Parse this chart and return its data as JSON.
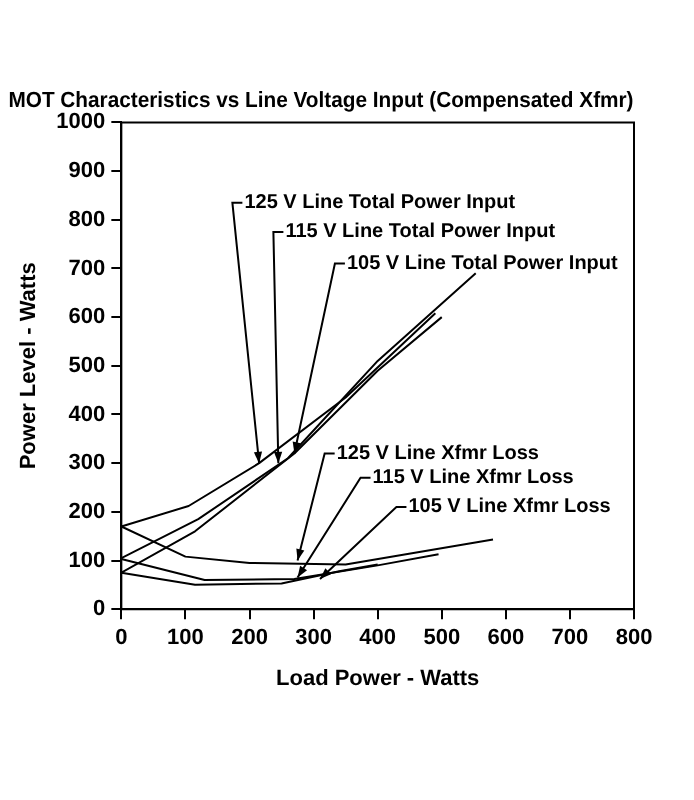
{
  "chart_data": {
    "type": "line",
    "title": "MOT Characteristics vs Line Voltage Input (Compensated Xfmr)",
    "xlabel": "Load Power - Watts",
    "ylabel": "Power Level - Watts",
    "xlim": [
      0,
      800
    ],
    "xticks": [
      0,
      100,
      200,
      300,
      400,
      500,
      600,
      700,
      800
    ],
    "ylim": [
      0,
      1000
    ],
    "yticks": [
      0,
      100,
      200,
      300,
      400,
      500,
      600,
      700,
      800,
      900,
      1000
    ],
    "grid": false,
    "legend": false,
    "marker": "none",
    "line_style": "solid",
    "series": [
      {
        "color": "#000000",
        "x": [
          0,
          105,
          215,
          350,
          490
        ],
        "values": [
          170,
          212,
          300,
          435,
          608
        ]
      },
      {
        "color": "#000000",
        "x": [
          0,
          120,
          260,
          400,
          553
        ],
        "values": [
          105,
          185,
          310,
          510,
          690
        ]
      },
      {
        "color": "#000000",
        "x": [
          0,
          115,
          270,
          400,
          500
        ],
        "values": [
          75,
          160,
          320,
          490,
          600
        ]
      },
      {
        "color": "#000000",
        "x": [
          0,
          100,
          200,
          350,
          580
        ],
        "values": [
          170,
          108,
          95,
          92,
          143
        ]
      },
      {
        "color": "#000000",
        "x": [
          0,
          130,
          270,
          400,
          495
        ],
        "values": [
          103,
          60,
          62,
          90,
          113
        ]
      },
      {
        "color": "#000000",
        "x": [
          0,
          115,
          250,
          340,
          400
        ],
        "values": [
          75,
          50,
          53,
          78,
          92
        ]
      }
    ],
    "annotations": [
      {
        "text": "125 V Line Total Power Input",
        "x": 215,
        "y": 300
      },
      {
        "text": "115 V Line Total Power Input",
        "x": 245,
        "y": 300
      },
      {
        "text": "105 V Line Total Power Input",
        "x": 270,
        "y": 320
      },
      {
        "text": "125 V Line Xfmr Loss",
        "x": 275,
        "y": 100
      },
      {
        "text": "115 V Line Xfmr Loss",
        "x": 275,
        "y": 65
      },
      {
        "text": "105 V Line Xfmr Loss",
        "x": 310,
        "y": 62
      }
    ]
  }
}
